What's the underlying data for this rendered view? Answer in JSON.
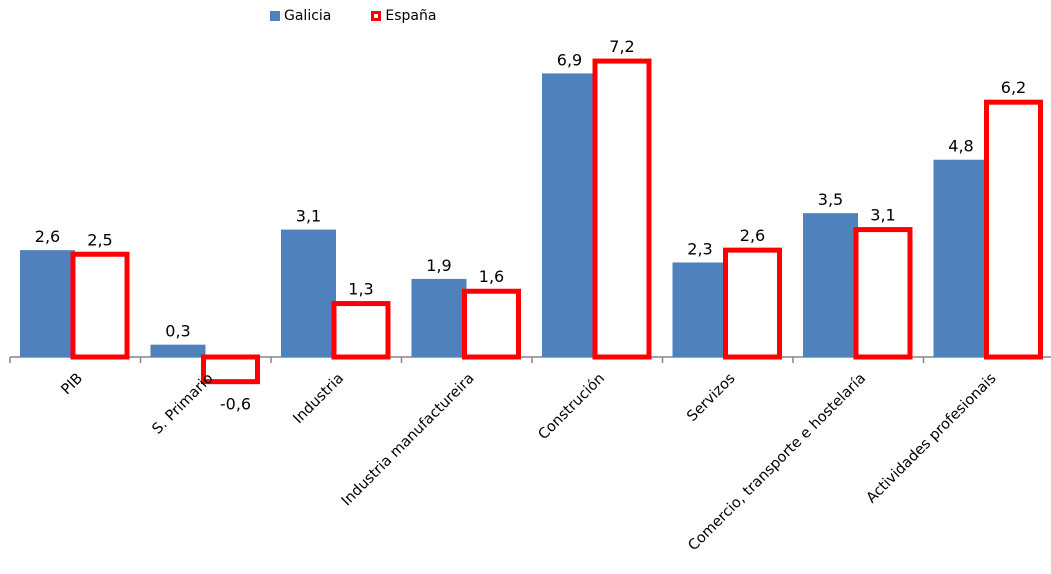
{
  "legend": {
    "galicia": "Galicia",
    "espana": "España"
  },
  "colors": {
    "galicia": "#4f81bd",
    "espana": "#ff0000"
  },
  "chart_data": {
    "type": "bar",
    "title": "",
    "xlabel": "",
    "ylabel": "",
    "categories": [
      "PIB",
      "S. Primario",
      "Industria",
      "Industria manufactureira",
      "Construción",
      "Servizos",
      "Comercio, transporte e hostelaría",
      "Actividades profesionais"
    ],
    "series": [
      {
        "name": "Galicia",
        "values": [
          2.6,
          0.3,
          3.1,
          1.9,
          6.9,
          2.3,
          3.5,
          4.8
        ],
        "labels": [
          "2,6",
          "0,3",
          "3,1",
          "1,9",
          "6,9",
          "2,3",
          "3,5",
          "4,8"
        ]
      },
      {
        "name": "España",
        "values": [
          2.5,
          -0.6,
          1.3,
          1.6,
          7.2,
          2.6,
          3.1,
          6.2
        ],
        "labels": [
          "2,5",
          "-0,6",
          "1,3",
          "1,6",
          "7,2",
          "2,6",
          "3,1",
          "6,2"
        ]
      }
    ],
    "grid": false,
    "legend_position": "top"
  }
}
